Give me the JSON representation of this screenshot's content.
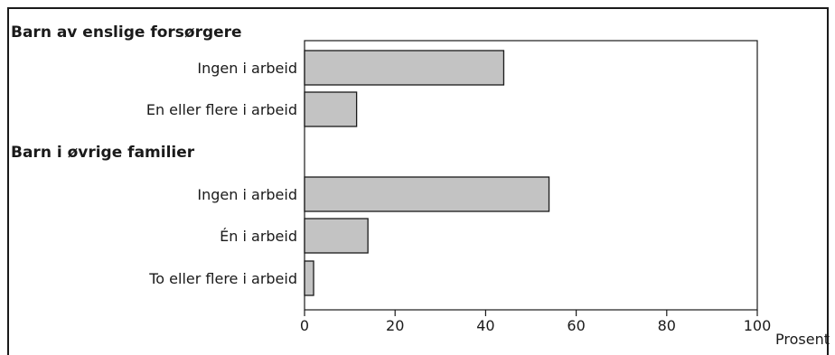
{
  "chart_data": {
    "type": "bar",
    "orientation": "horizontal",
    "groups": [
      {
        "title": "Barn av enslige forsørgere",
        "categories": [
          "Ingen i arbeid",
          "En eller flere i arbeid"
        ],
        "values": [
          44,
          11.5
        ]
      },
      {
        "title": "Barn i øvrige familier",
        "categories": [
          "Ingen i arbeid",
          "Én i arbeid",
          "To eller flere i arbeid"
        ],
        "values": [
          54,
          14,
          2
        ]
      }
    ],
    "xlim": [
      0,
      100
    ],
    "xticks": [
      0,
      20,
      40,
      60,
      80,
      100
    ],
    "xlabel": "Prosent",
    "grid": false,
    "colors": {
      "bar_fill": "#c3c3c3",
      "bar_stroke": "#1a1a1a"
    }
  }
}
